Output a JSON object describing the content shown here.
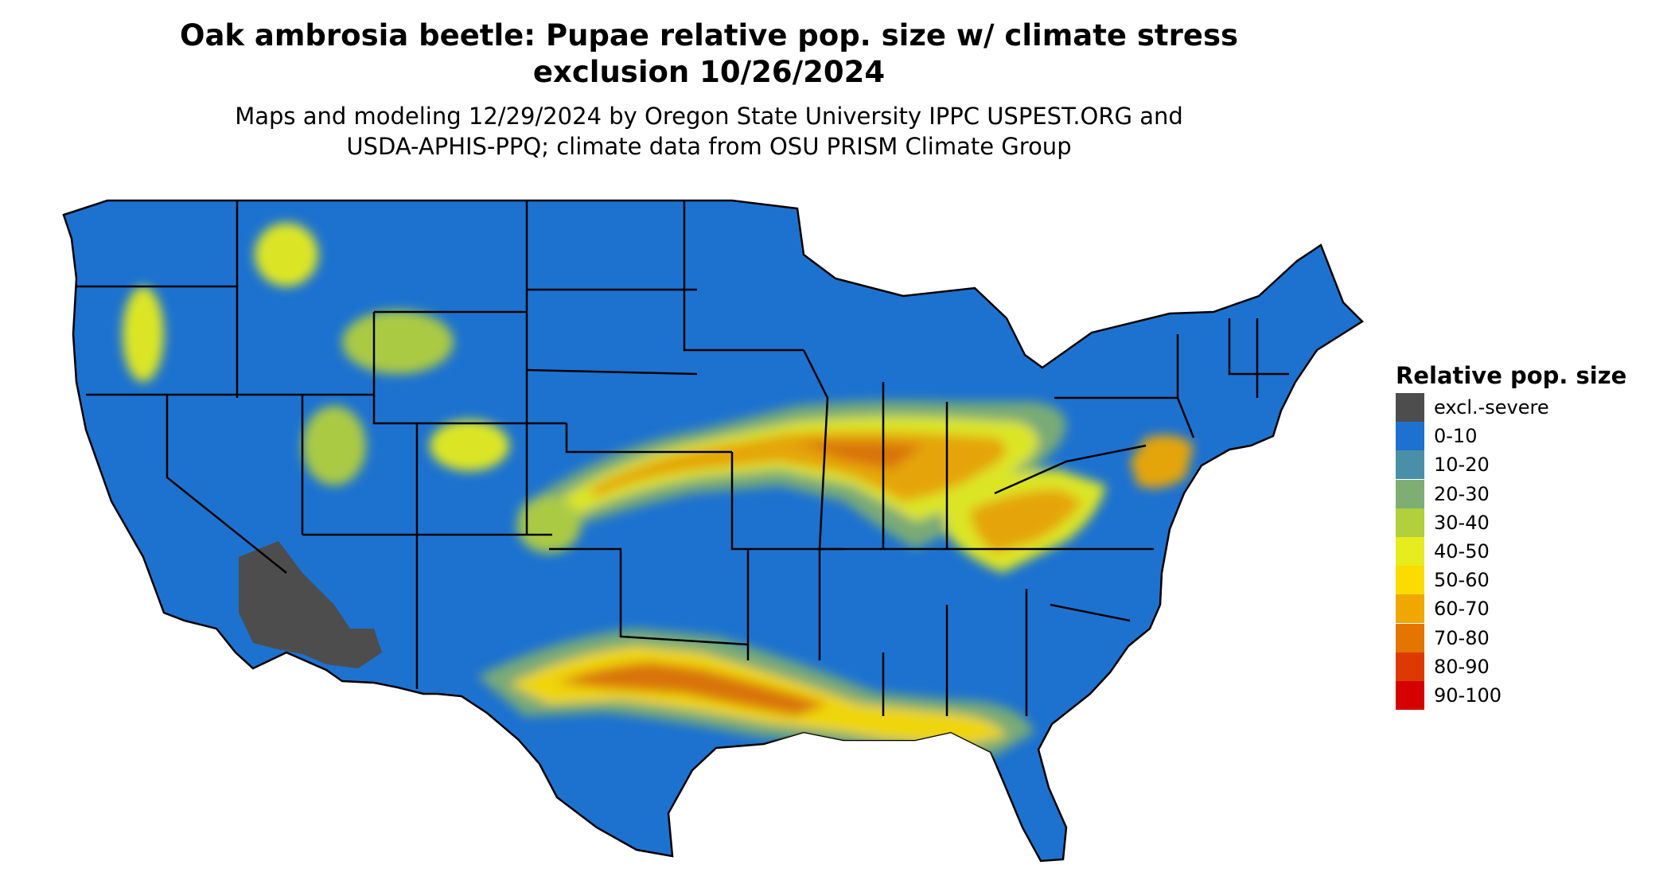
{
  "title": {
    "line1": "Oak ambrosia beetle: Pupae relative pop. size w/ climate stress",
    "line2": "exclusion 10/26/2024"
  },
  "subtitle": {
    "line1": "Maps and modeling 12/29/2024 by Oregon State University IPPC USPEST.ORG and",
    "line2": "USDA-APHIS-PPQ; climate data from OSU PRISM Climate Group"
  },
  "legend": {
    "title": "Relative pop. size",
    "items": [
      {
        "label": "excl.-severe",
        "color": "#4d4d4d"
      },
      {
        "label": "0-10",
        "color": "#1d72d0"
      },
      {
        "label": "10-20",
        "color": "#4a8fa8"
      },
      {
        "label": "20-30",
        "color": "#7fae72"
      },
      {
        "label": "30-40",
        "color": "#b2cf3c"
      },
      {
        "label": "40-50",
        "color": "#e6ec1e"
      },
      {
        "label": "50-60",
        "color": "#fbdb00"
      },
      {
        "label": "60-70",
        "color": "#f0a800"
      },
      {
        "label": "70-80",
        "color": "#e37500"
      },
      {
        "label": "80-90",
        "color": "#dc3a00"
      },
      {
        "label": "90-100",
        "color": "#d60000"
      }
    ]
  },
  "map": {
    "region": "conterminous-united-states",
    "base_color": "#1d72d0",
    "border_color": "#000000",
    "excluded_color": "#4d4d4d"
  }
}
